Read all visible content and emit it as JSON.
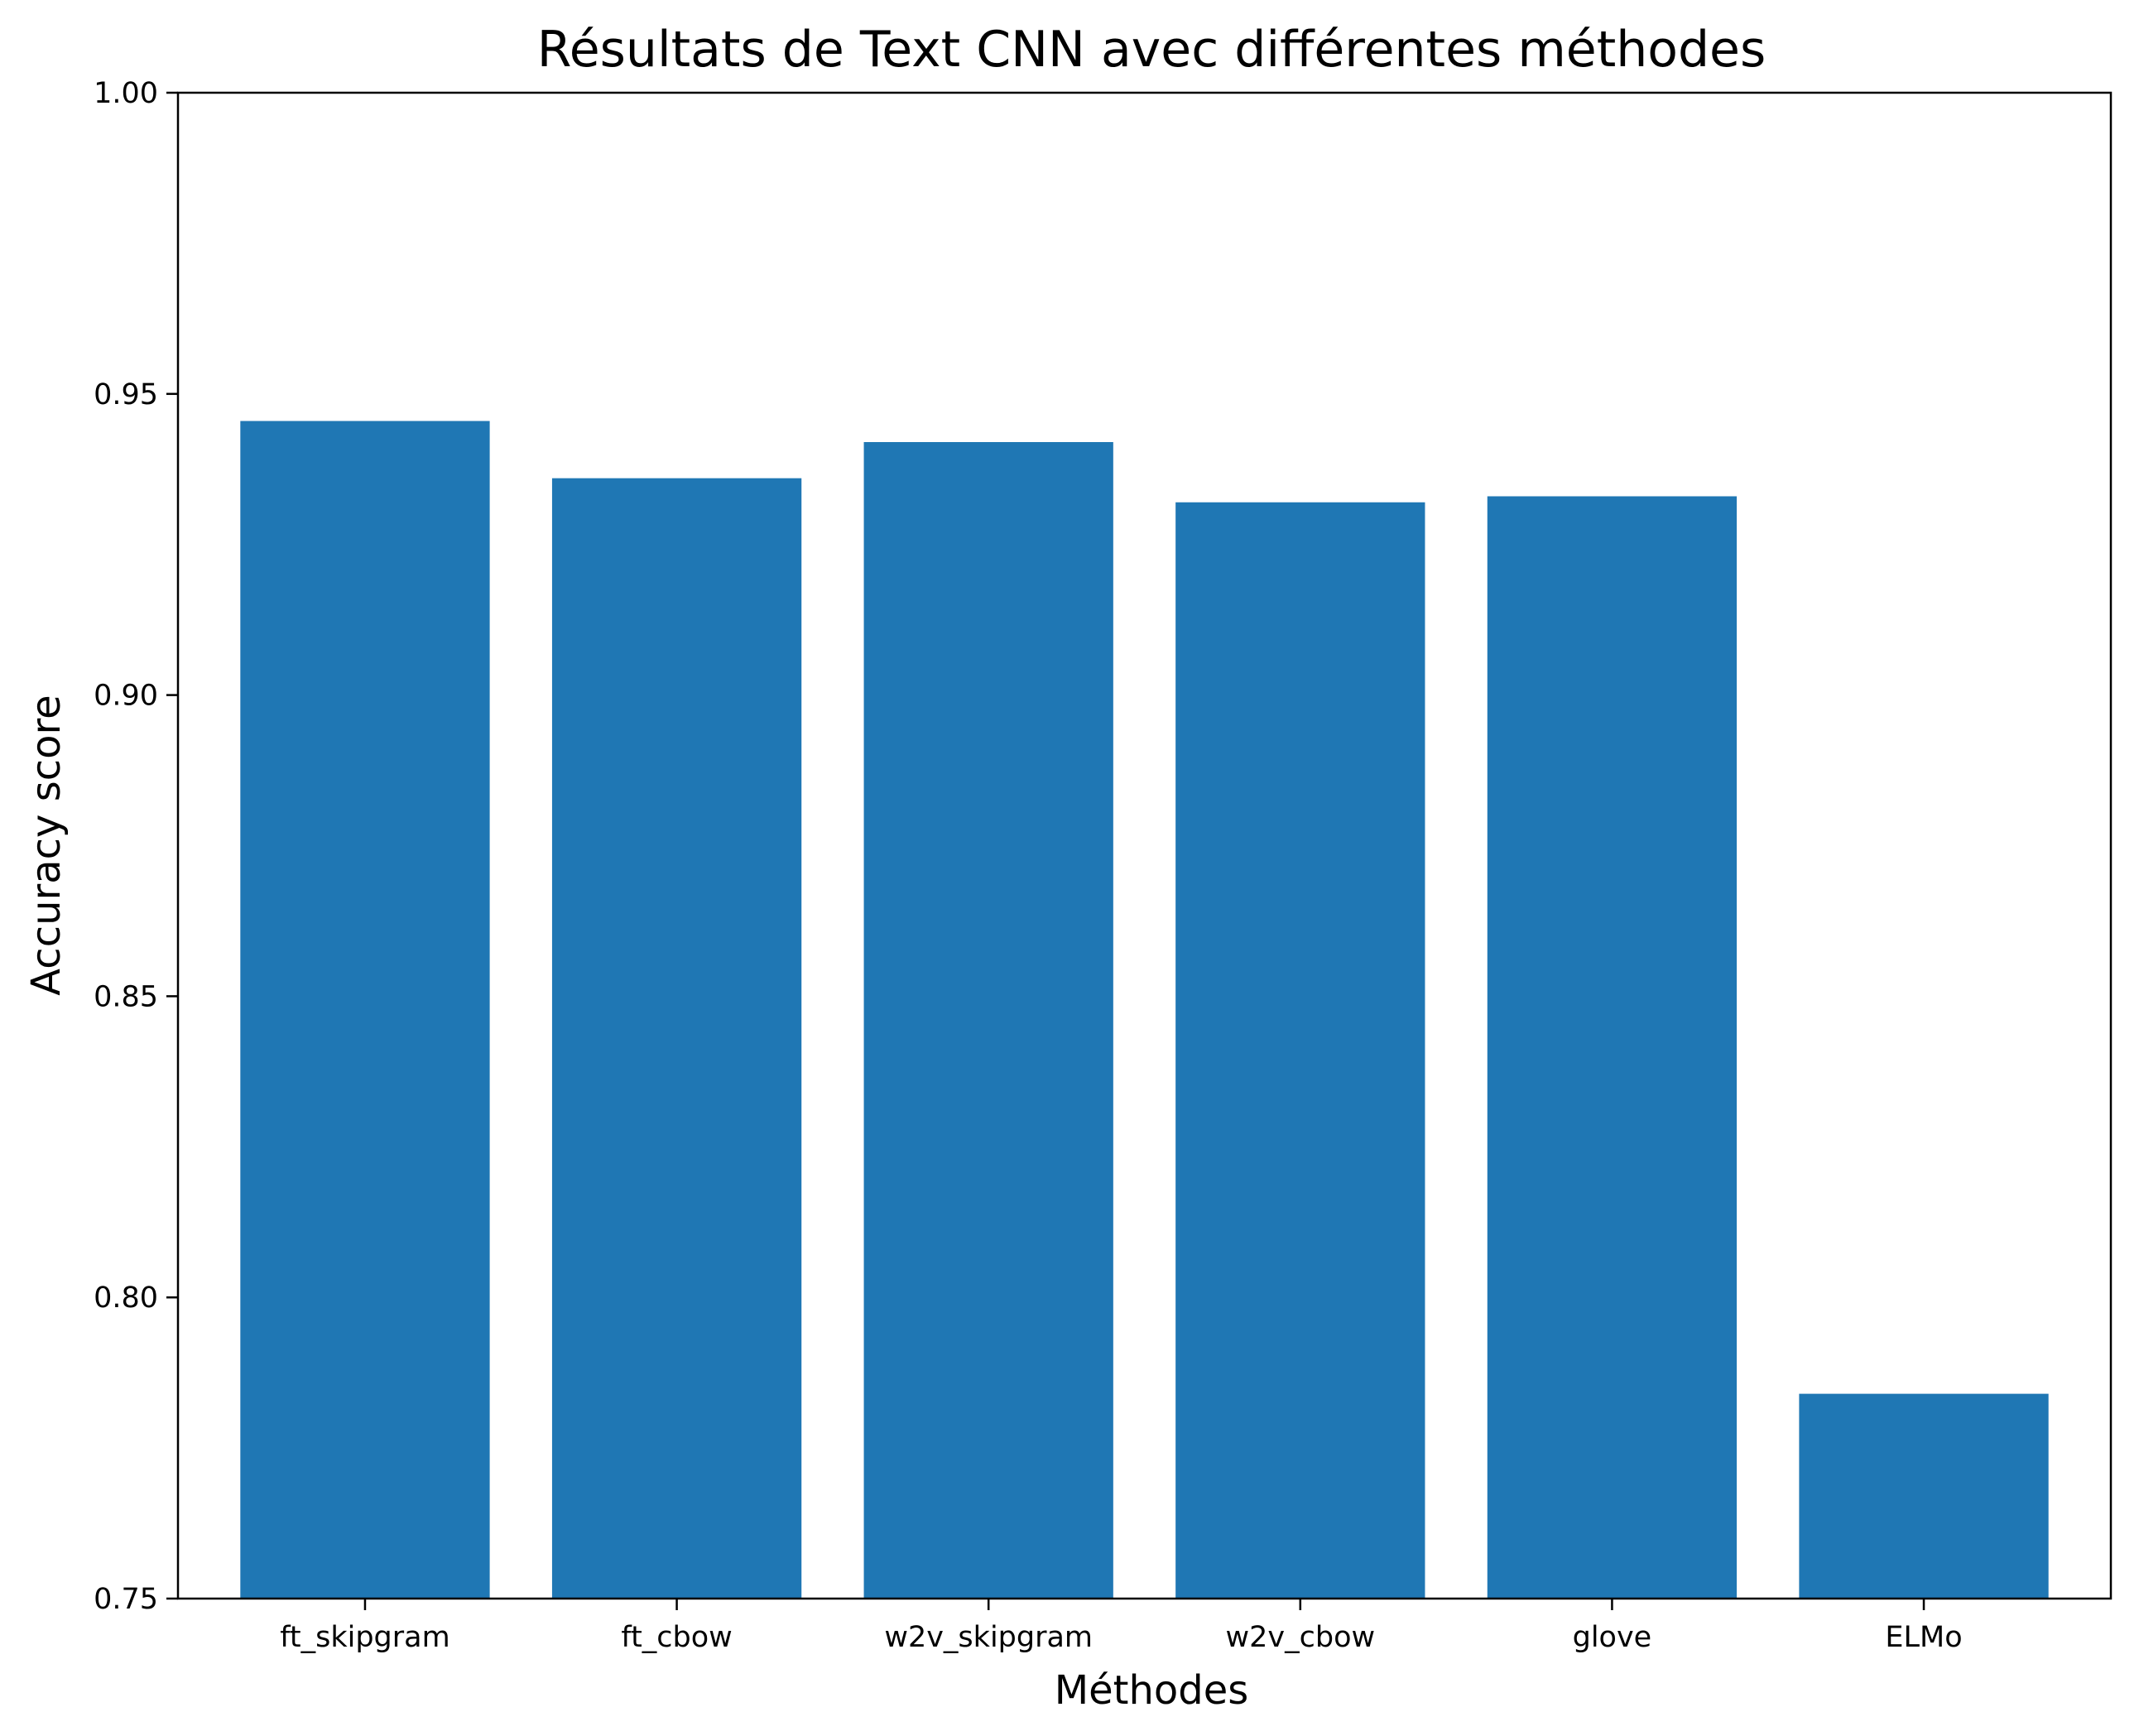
{
  "chart_data": {
    "type": "bar",
    "title": "Résultats de Text CNN avec différentes méthodes",
    "xlabel": "Méthodes",
    "ylabel": "Accuracy score",
    "categories": [
      "ft_skipgram",
      "ft_cbow",
      "w2v_skipgram",
      "w2v_cbow",
      "glove",
      "ELMo"
    ],
    "values": [
      0.9455,
      0.936,
      0.942,
      0.932,
      0.933,
      0.784
    ],
    "ylim": [
      0.75,
      1.0
    ],
    "yticks": [
      "0.75",
      "0.80",
      "0.85",
      "0.90",
      "0.95",
      "1.00"
    ],
    "bar_color": "#1f77b4",
    "grid": false,
    "legend": "none"
  }
}
